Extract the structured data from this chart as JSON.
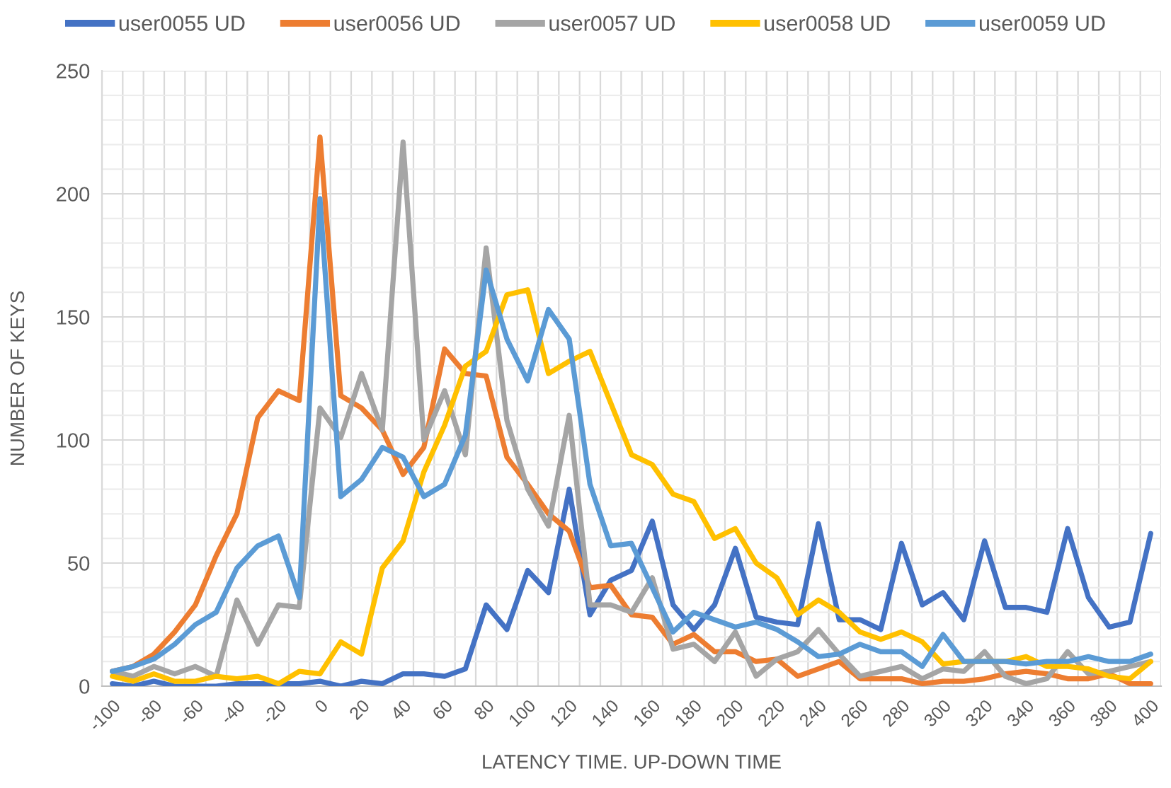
{
  "chart_data": {
    "type": "line",
    "xlabel": "LATENCY TIME. UP-DOWN TIME",
    "ylabel": "NUMBER OF KEYS",
    "categories": [
      "-100",
      null,
      "-80",
      null,
      "-60",
      null,
      "-40",
      null,
      "-20",
      null,
      "0",
      null,
      "20",
      null,
      "40",
      null,
      "60",
      null,
      "80",
      null,
      "100",
      null,
      "120",
      null,
      "140",
      null,
      "160",
      null,
      "180",
      null,
      "200",
      null,
      "220",
      null,
      "240",
      null,
      "260",
      null,
      "280",
      null,
      "300",
      null,
      "320",
      null,
      "340",
      null,
      "360",
      null,
      "380",
      null,
      "400"
    ],
    "series": [
      {
        "name": "user0055 UD",
        "color": "#4472c4",
        "values": [
          1,
          0,
          2,
          0,
          0,
          0,
          1,
          1,
          1,
          1,
          2,
          0,
          2,
          1,
          5,
          5,
          4,
          7,
          33,
          23,
          47,
          38,
          80,
          29,
          43,
          47,
          67,
          33,
          23,
          33,
          56,
          28,
          26,
          25,
          66,
          27,
          27,
          23,
          58,
          33,
          38,
          27,
          59,
          32,
          32,
          30,
          64,
          36,
          24,
          26,
          62
        ]
      },
      {
        "name": "user0056 UD",
        "color": "#ed7d31",
        "values": [
          6,
          8,
          13,
          22,
          33,
          53,
          70,
          109,
          120,
          116,
          223,
          118,
          113,
          104,
          86,
          97,
          137,
          127,
          126,
          93,
          82,
          70,
          63,
          40,
          41,
          29,
          28,
          17,
          21,
          14,
          14,
          10,
          11,
          4,
          7,
          10,
          3,
          3,
          3,
          1,
          2,
          2,
          3,
          5,
          6,
          5,
          3,
          3,
          5,
          1,
          1
        ]
      },
      {
        "name": "user0057 UD",
        "color": "#a5a5a5",
        "values": [
          6,
          4,
          8,
          5,
          8,
          4,
          35,
          17,
          33,
          32,
          113,
          101,
          127,
          104,
          221,
          100,
          120,
          94,
          178,
          108,
          80,
          65,
          110,
          33,
          33,
          30,
          44,
          15,
          17,
          10,
          22,
          4,
          11,
          14,
          23,
          13,
          4,
          6,
          8,
          3,
          7,
          6,
          14,
          4,
          1,
          3,
          14,
          5,
          6,
          8,
          10
        ]
      },
      {
        "name": "user0058 UD",
        "color": "#ffc000",
        "values": [
          4,
          2,
          5,
          2,
          2,
          4,
          3,
          4,
          1,
          6,
          5,
          18,
          13,
          48,
          59,
          87,
          106,
          130,
          136,
          159,
          161,
          127,
          132,
          136,
          115,
          94,
          90,
          78,
          75,
          60,
          64,
          50,
          44,
          29,
          35,
          30,
          22,
          19,
          22,
          18,
          9,
          10,
          10,
          10,
          12,
          8,
          8,
          7,
          4,
          3,
          10
        ]
      },
      {
        "name": "user0059 UD",
        "color": "#5b9bd5",
        "values": [
          6,
          8,
          11,
          17,
          25,
          30,
          48,
          57,
          61,
          36,
          198,
          77,
          84,
          97,
          93,
          77,
          82,
          102,
          169,
          141,
          124,
          153,
          141,
          82,
          57,
          58,
          40,
          22,
          30,
          27,
          24,
          26,
          23,
          18,
          12,
          13,
          17,
          14,
          14,
          8,
          21,
          10,
          10,
          10,
          9,
          10,
          10,
          12,
          10,
          10,
          13
        ]
      }
    ],
    "ylim": [
      0,
      250
    ],
    "yticks": [
      0,
      {
        "value": 10,
        "label": null
      },
      {
        "value": 20,
        "label": null
      },
      {
        "value": 30,
        "label": null
      },
      {
        "value": 40,
        "label": null
      },
      50,
      {
        "value": 60,
        "label": null
      },
      {
        "value": 70,
        "label": null
      },
      {
        "value": 80,
        "label": null
      },
      {
        "value": 90,
        "label": null
      },
      100,
      {
        "value": 110,
        "label": null
      },
      {
        "value": 120,
        "label": null
      },
      {
        "value": 130,
        "label": null
      },
      {
        "value": 140,
        "label": null
      },
      150,
      {
        "value": 160,
        "label": null
      },
      {
        "value": 170,
        "label": null
      },
      {
        "value": 180,
        "label": null
      },
      {
        "value": 190,
        "label": null
      },
      200,
      {
        "value": 210,
        "label": null
      },
      {
        "value": 220,
        "label": null
      },
      {
        "value": 230,
        "label": null
      },
      {
        "value": 240,
        "label": null
      },
      250
    ],
    "grid": true,
    "legend": "top"
  }
}
